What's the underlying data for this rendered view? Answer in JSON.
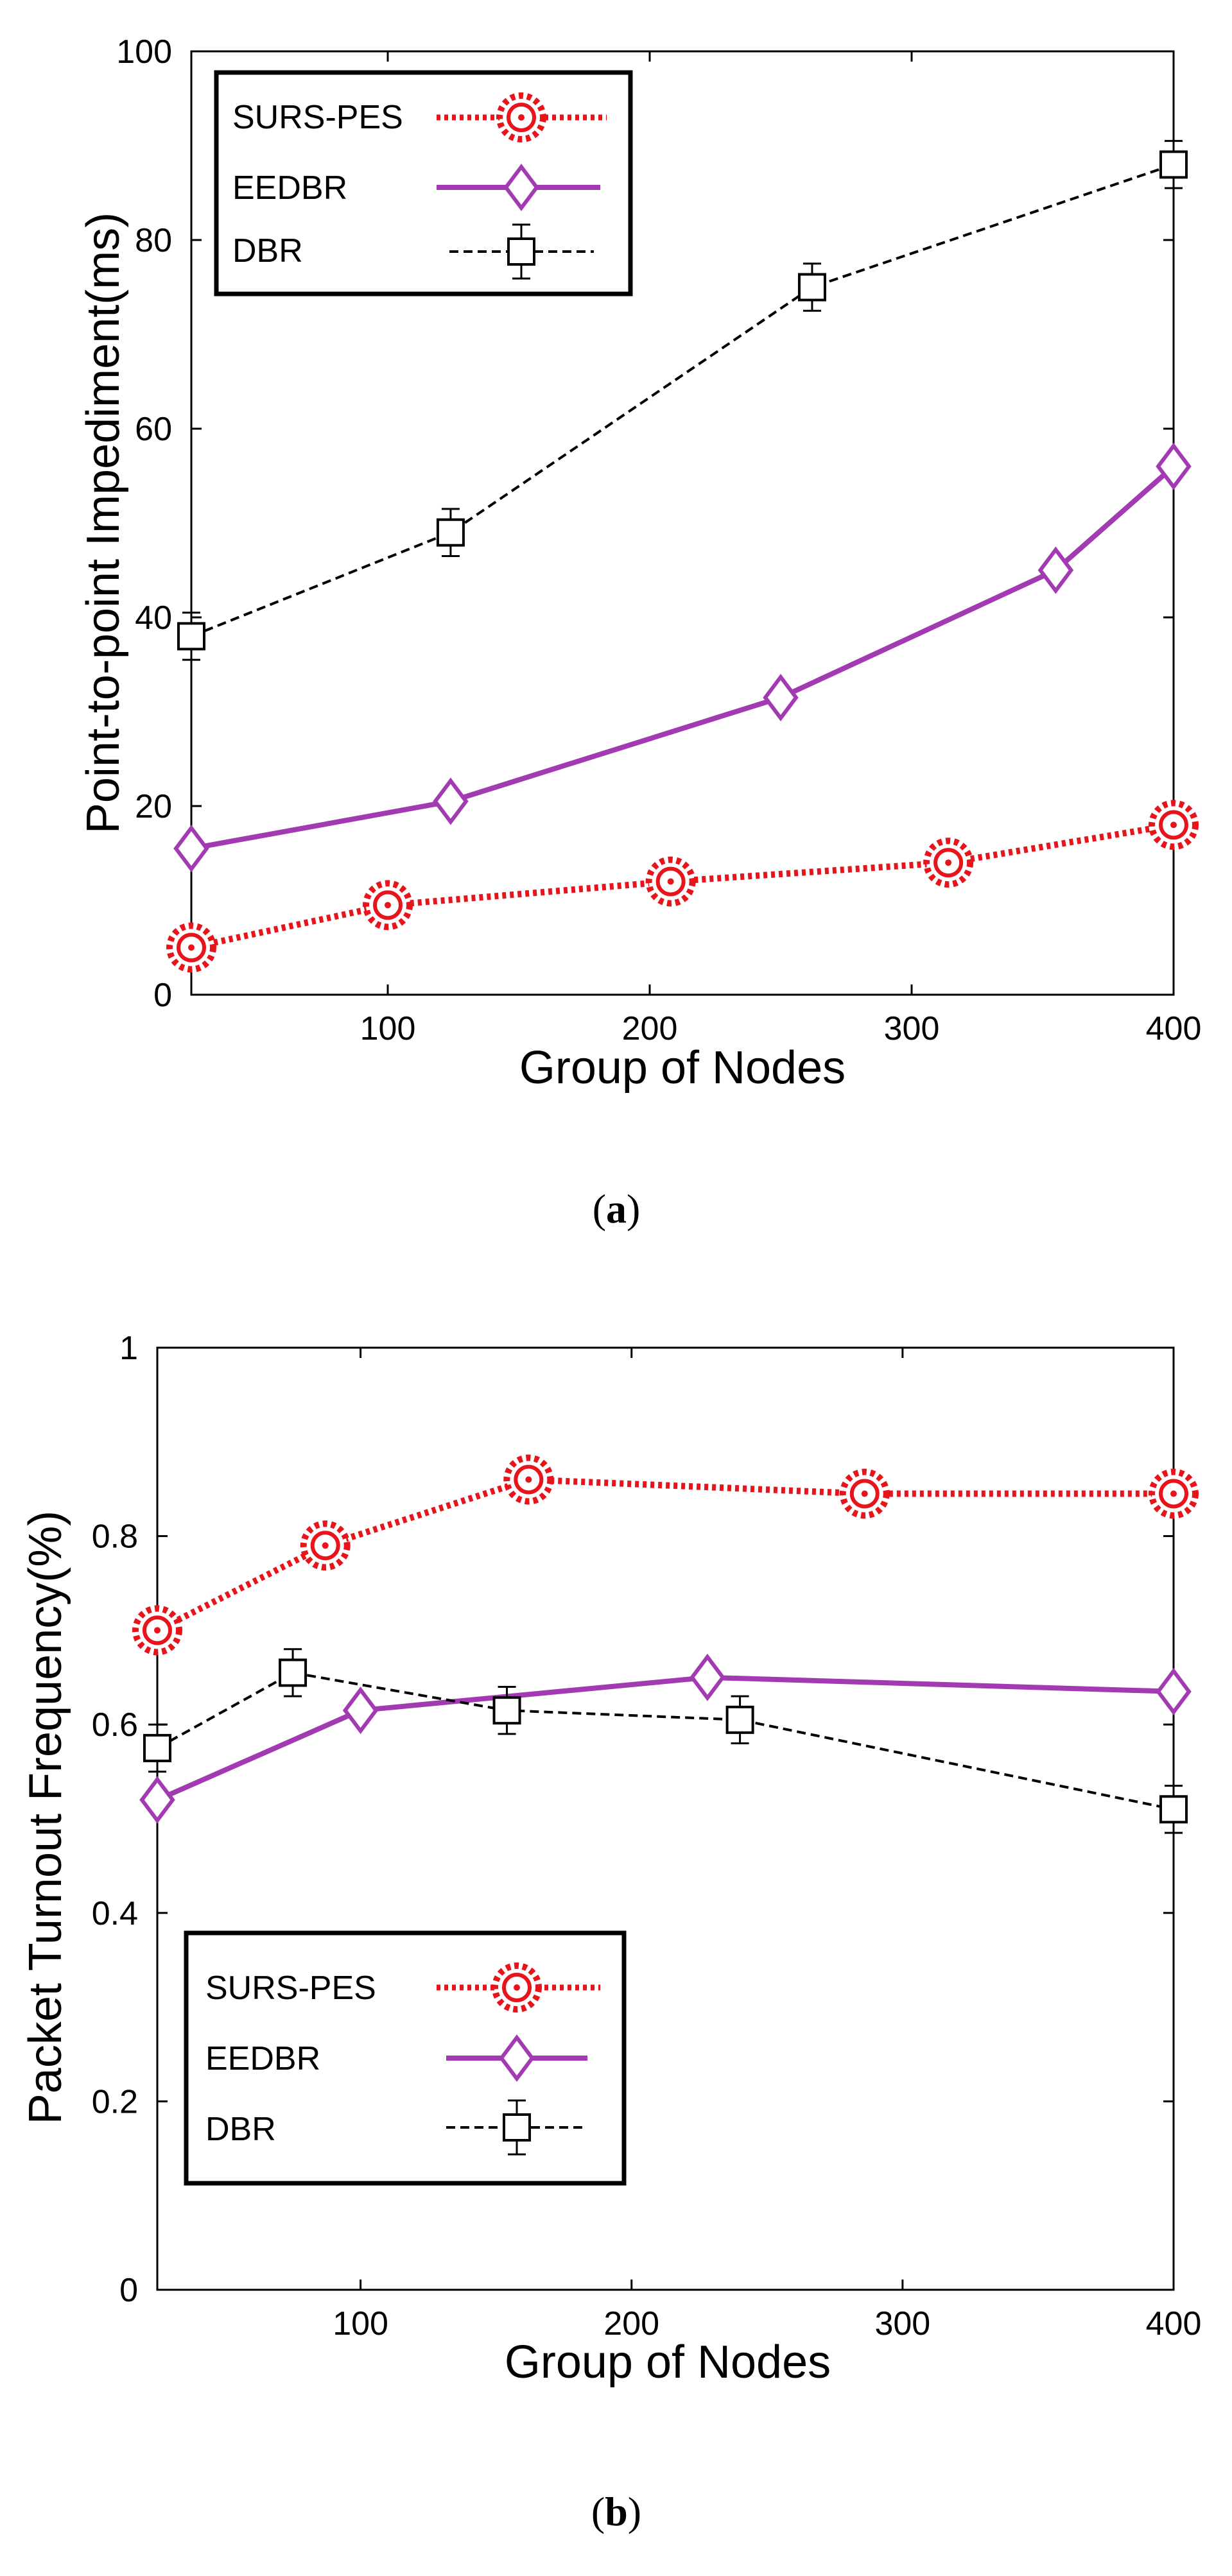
{
  "chart_data": [
    {
      "type": "line",
      "title": "",
      "caption": "(a)",
      "caption_letter": "a",
      "xlabel": "Group of Nodes",
      "ylabel": "Point-to-point Impediment(ms)",
      "xlim": [
        25,
        400
      ],
      "ylim": [
        0,
        100
      ],
      "xticks": [
        100,
        200,
        300,
        400
      ],
      "yticks": [
        0,
        20,
        40,
        60,
        80,
        100
      ],
      "legend_position": "top-left",
      "series": [
        {
          "name": "SURS-PES",
          "color": "#e8141b",
          "marker": "gear",
          "line": "dotted",
          "x": [
            25,
            100,
            208,
            314,
            400
          ],
          "y": [
            5,
            9.5,
            12,
            14,
            18
          ]
        },
        {
          "name": "EEDBR",
          "color": "#a23ab1",
          "marker": "diamond",
          "line": "solid",
          "x": [
            25,
            124,
            250,
            355,
            400
          ],
          "y": [
            15.5,
            20.5,
            31.5,
            45,
            56
          ]
        },
        {
          "name": "DBR",
          "color": "#000000",
          "marker": "square",
          "line": "dashed",
          "x": [
            25,
            124,
            262,
            400
          ],
          "y": [
            38,
            49,
            75,
            88
          ],
          "err": [
            2.5,
            2.5,
            2.5,
            2.5
          ]
        }
      ]
    },
    {
      "type": "line",
      "title": "",
      "caption": "(b)",
      "caption_letter": "b",
      "xlabel": "Group of Nodes",
      "ylabel": "Packet Turnout Frequency(%)",
      "xlim": [
        25,
        400
      ],
      "ylim": [
        0,
        1
      ],
      "xticks": [
        100,
        200,
        300,
        400
      ],
      "yticks": [
        0,
        0.2,
        0.4,
        0.6,
        0.8,
        1
      ],
      "legend_position": "bottom-left",
      "series": [
        {
          "name": "SURS-PES",
          "color": "#e8141b",
          "marker": "gear",
          "line": "dotted",
          "x": [
            25,
            87,
            162,
            286,
            400
          ],
          "y": [
            0.7,
            0.79,
            0.86,
            0.845,
            0.845
          ]
        },
        {
          "name": "EEDBR",
          "color": "#a23ab1",
          "marker": "diamond",
          "line": "solid",
          "x": [
            25,
            100,
            228,
            400
          ],
          "y": [
            0.52,
            0.615,
            0.65,
            0.635
          ]
        },
        {
          "name": "DBR",
          "color": "#000000",
          "marker": "square",
          "line": "dashed",
          "x": [
            25,
            75,
            154,
            240,
            400
          ],
          "y": [
            0.575,
            0.655,
            0.615,
            0.605,
            0.51
          ],
          "err": [
            0.025,
            0.025,
            0.025,
            0.025,
            0.025
          ]
        }
      ]
    }
  ]
}
